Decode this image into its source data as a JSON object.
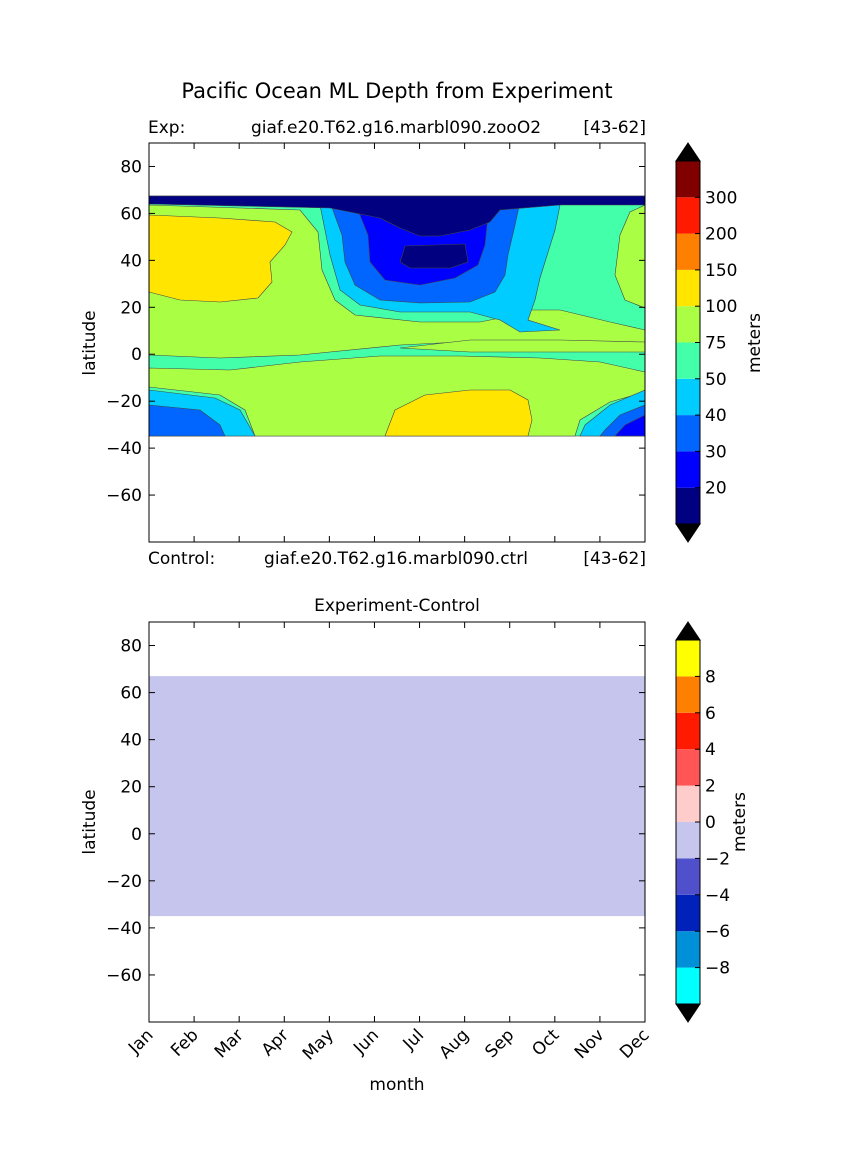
{
  "title": "Pacific Ocean ML Depth from Experiment",
  "exp_label": "Exp:",
  "exp_case": "giaf.e20.T62.g16.marbl090.zooO2",
  "exp_years": "[43-62]",
  "ctrl_label": "Control:",
  "ctrl_case": "giaf.e20.T62.g16.marbl090.ctrl",
  "ctrl_years": "[43-62]",
  "chart_data": [
    {
      "type": "heatmap",
      "title": "",
      "xlabel": "",
      "ylabel": "latitude",
      "x_categories": [
        "Jan",
        "Feb",
        "Mar",
        "Apr",
        "May",
        "Jun",
        "Jul",
        "Aug",
        "Sep",
        "Oct",
        "Nov",
        "Dec"
      ],
      "xlim": [
        0,
        11
      ],
      "ylim": [
        -80,
        90
      ],
      "yticks": [
        80,
        60,
        40,
        20,
        0,
        -20,
        -40,
        -60
      ],
      "data_lat_range": [
        -35,
        67
      ],
      "colorbar": {
        "label": "meters",
        "levels": [
          "20",
          "30",
          "40",
          "50",
          "75",
          "100",
          "150",
          "200",
          "300"
        ],
        "colors": [
          "#000080",
          "#0000ff",
          "#0066ff",
          "#00ccff",
          "#44ffaa",
          "#aaff44",
          "#ffe500",
          "#ff8000",
          "#ff1a00",
          "#800000"
        ],
        "extend_colors": [
          "#000000",
          "#000000"
        ]
      },
      "grid": false
    },
    {
      "type": "heatmap",
      "title": "Experiment-Control",
      "xlabel": "month",
      "ylabel": "latitude",
      "x_categories": [
        "Jan",
        "Feb",
        "Mar",
        "Apr",
        "May",
        "Jun",
        "Jul",
        "Aug",
        "Sep",
        "Oct",
        "Nov",
        "Dec"
      ],
      "xlim": [
        0,
        11
      ],
      "ylim": [
        -80,
        90
      ],
      "yticks": [
        80,
        60,
        40,
        20,
        0,
        -20,
        -40,
        -60
      ],
      "data_lat_range": [
        -35,
        67
      ],
      "fill_value_range": [
        -2,
        0
      ],
      "colorbar": {
        "label": "meters",
        "levels": [
          "-8",
          "-6",
          "-4",
          "-2",
          "0",
          "2",
          "4",
          "6",
          "8"
        ],
        "colors": [
          "#00ffff",
          "#0090d8",
          "#0022bb",
          "#5050cc",
          "#c5c5ee",
          "#ffcccc",
          "#ff5555",
          "#ff1a00",
          "#ff8000",
          "#ffff00"
        ],
        "extend_colors": [
          "#000000",
          "#000000"
        ]
      },
      "grid": false
    }
  ]
}
